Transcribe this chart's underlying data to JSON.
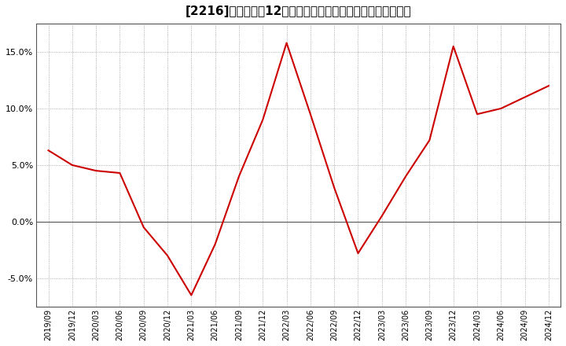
{
  "title": "[2216]　売上高の12か月移動合計の対前年同期増減率の推移",
  "x_labels": [
    "2019/09",
    "2019/12",
    "2020/03",
    "2020/06",
    "2020/09",
    "2020/12",
    "2021/03",
    "2021/06",
    "2021/09",
    "2021/12",
    "2022/03",
    "2022/06",
    "2022/09",
    "2022/12",
    "2023/03",
    "2023/06",
    "2023/09",
    "2023/12",
    "2024/03",
    "2024/06",
    "2024/09",
    "2024/12"
  ],
  "y_values": [
    0.063,
    0.05,
    0.045,
    0.043,
    -0.005,
    -0.03,
    -0.065,
    -0.02,
    0.04,
    0.09,
    0.158,
    0.095,
    0.03,
    -0.028,
    0.005,
    0.04,
    0.072,
    0.155,
    0.095,
    0.1,
    0.11,
    0.12
  ],
  "line_color": "#cc0000",
  "line_width": 1.5,
  "background_color": "#ffffff",
  "plot_bg_color": "#ffffff",
  "grid_color": "#999999",
  "zero_line_color": "#555555",
  "ylim": [
    -0.075,
    0.175
  ],
  "yticks": [
    -0.05,
    0.0,
    0.05,
    0.1,
    0.15
  ],
  "ytick_labels": [
    "-5.0%",
    "0.0%",
    "5.0%",
    "10.0%",
    "15.0%"
  ],
  "title_fontsize": 11,
  "tick_fontsize": 8,
  "xtick_fontsize": 7
}
